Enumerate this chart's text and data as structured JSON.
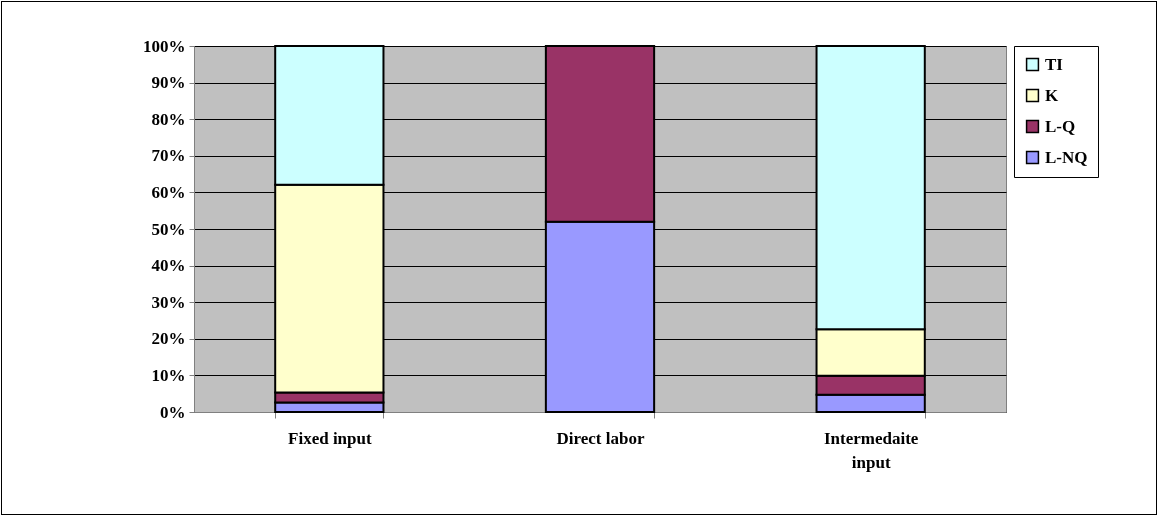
{
  "chart_data": {
    "type": "bar",
    "stacked": true,
    "categories": [
      "Fixed input",
      "Direct labor",
      "Intermedaite input"
    ],
    "series": [
      {
        "name": "L-NQ",
        "color": "#9999ff",
        "values": [
          2.6,
          52,
          4.7
        ]
      },
      {
        "name": "L-Q",
        "color": "#993366",
        "values": [
          2.7,
          48,
          5.2
        ]
      },
      {
        "name": "K",
        "color": "#ffffcc",
        "values": [
          56.8,
          null,
          12.7
        ]
      },
      {
        "name": "TI",
        "color": "#ccffff",
        "values": [
          37.9,
          null,
          77.4
        ]
      }
    ],
    "ylim": [
      0,
      100
    ],
    "yticks": [
      {
        "value": 0,
        "label": "0%"
      },
      {
        "value": 10,
        "label": "10%"
      },
      {
        "value": 20,
        "label": "20%"
      },
      {
        "value": 30,
        "label": "30%"
      },
      {
        "value": 40,
        "label": "40%"
      },
      {
        "value": 50,
        "label": "50%"
      },
      {
        "value": 60,
        "label": "60%"
      },
      {
        "value": 70,
        "label": "70%"
      },
      {
        "value": 80,
        "label": "80%"
      },
      {
        "value": 90,
        "label": "90%"
      },
      {
        "value": 100,
        "label": "100%"
      }
    ],
    "grid": "y",
    "legend": "right"
  }
}
